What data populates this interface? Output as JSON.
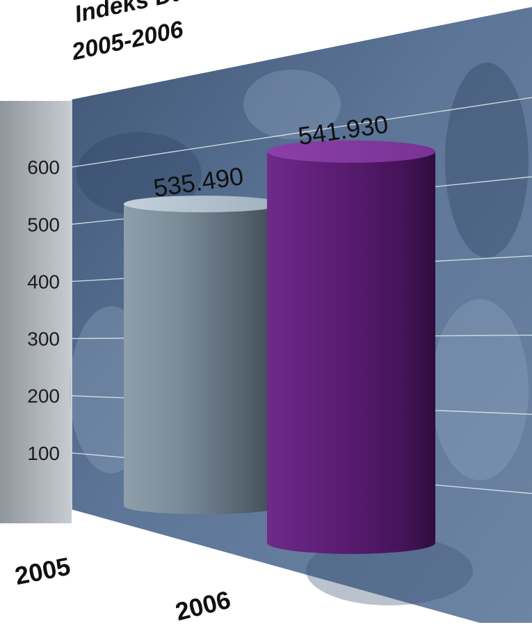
{
  "title": {
    "line1": "Indeks Da",
    "line2": "2005-2006"
  },
  "colors": {
    "bar_2005": "#7b8c98",
    "bar_2006": "#5a1b70",
    "wall": "#4d6484",
    "side_panel": "#b9bec3"
  },
  "chart_data": {
    "type": "bar",
    "style": "3d-cylinder",
    "categories": [
      "2005",
      "2006"
    ],
    "values": [
      535490,
      541930
    ],
    "data_labels": [
      "535.490",
      "541.930"
    ],
    "y_tick_labels": [
      "100",
      "200",
      "300",
      "400",
      "500",
      "600"
    ],
    "ylim": [
      0,
      650
    ],
    "grid": true,
    "legend": "none"
  }
}
